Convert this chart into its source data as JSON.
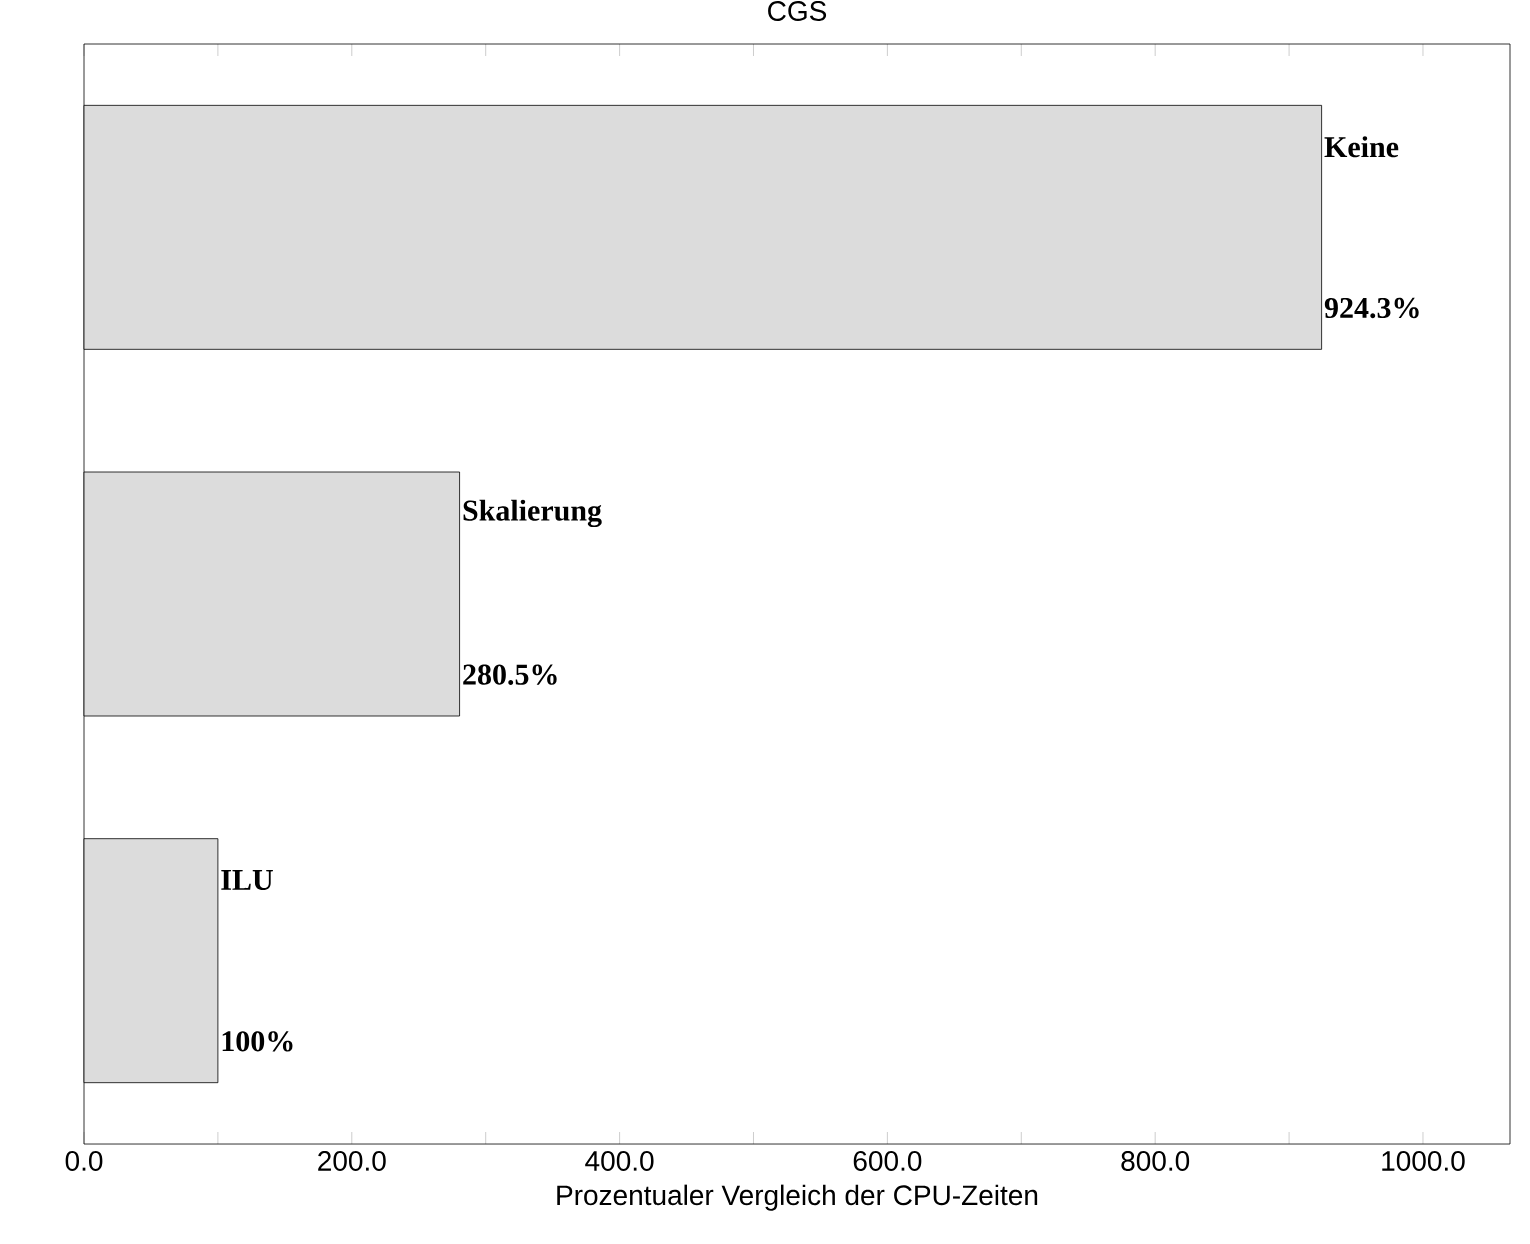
{
  "chart_data": {
    "type": "bar",
    "orientation": "horizontal",
    "title": "CGS",
    "xlabel": "Prozentualer Vergleich der CPU-Zeiten",
    "categories": [
      "Keine",
      "Skalierung",
      "ILU"
    ],
    "values": [
      924.3,
      280.5,
      100
    ],
    "value_labels": [
      "924.3%",
      "280.5%",
      "100%"
    ],
    "color": "#dcdcdc",
    "xlim": [
      0,
      1065
    ],
    "xticks": [
      {
        "value": 0,
        "label": "0.0"
      },
      {
        "value": 100,
        "label": null
      },
      {
        "value": 200,
        "label": "200.0"
      },
      {
        "value": 300,
        "label": null
      },
      {
        "value": 400,
        "label": "400.0"
      },
      {
        "value": 500,
        "label": null
      },
      {
        "value": 600,
        "label": "600.0"
      },
      {
        "value": 700,
        "label": null
      },
      {
        "value": 800,
        "label": "800.0"
      },
      {
        "value": 900,
        "label": null
      },
      {
        "value": 1000,
        "label": "1000.0"
      }
    ],
    "tick_labels": "x"
  }
}
